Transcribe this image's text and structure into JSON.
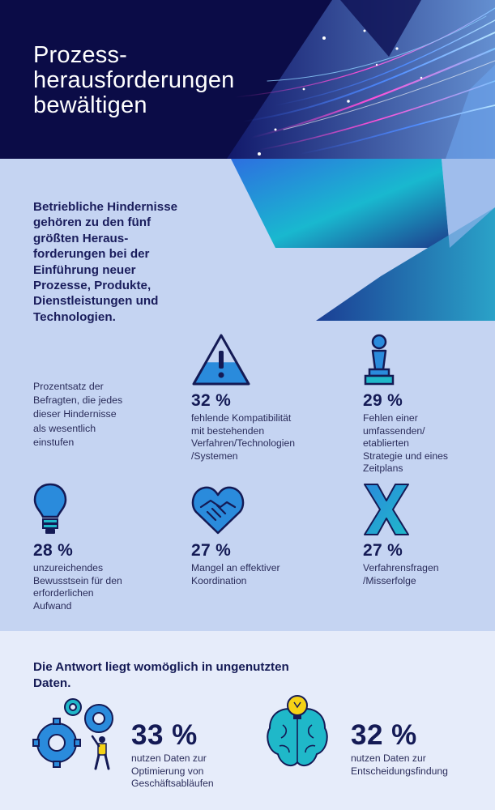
{
  "header": {
    "title": "Prozess-\nherausforderungen\nbewältigen"
  },
  "intro": {
    "text": "Betriebliche Hindernisse\ngehören zu den fünf\ngrößten Heraus-\nforderungen bei der\nEinführung neuer\nProzesse, Produkte,\nDienstleistungen und\nTechnologien.",
    "respondents": "Prozentsatz der\nBefragten, die jedes\ndieser Hindernisse\nals wesentlich\neinstufen"
  },
  "stats": [
    {
      "pct": "32 %",
      "desc": "fehlende Kompatibilität\nmit bestehenden\nVerfahren/Technologien\n/Systemen",
      "icon": "warning-icon"
    },
    {
      "pct": "29 %",
      "desc": "Fehlen einer\numfassenden/\netablierten\nStrategie und eines\nZeitplans",
      "icon": "chess-pawn-icon"
    },
    {
      "pct": "28 %",
      "desc": "unzureichendes\nBewusstsein für den\nerforderlichen\nAufwand",
      "icon": "lightbulb-icon"
    },
    {
      "pct": "27 %",
      "desc": "Mangel an effektiver\nKoordination",
      "icon": "handshake-heart-icon"
    },
    {
      "pct": "27 %",
      "desc": "Verfahrensfragen\n/Misserfolge",
      "icon": "x-icon"
    }
  ],
  "answer": {
    "heading": "Die Antwort liegt womöglich in ungenutzten\nDaten.",
    "items": [
      {
        "pct": "33 %",
        "desc": "nutzen Daten zur\nOptimierung von\nGeschäftsabläufen",
        "icon": "gears-person-icon"
      },
      {
        "pct": "32 %",
        "desc": "nutzen Daten zur\nEntscheidungsfindung",
        "icon": "brain-lightbulb-icon"
      }
    ]
  },
  "colors": {
    "navy": "#0b0c47",
    "light_blue": "#c5d4f2",
    "pale_blue": "#e6ecfa",
    "icon_blue": "#3d78d8",
    "teal": "#1fb8c9",
    "yellow": "#f5d216"
  }
}
